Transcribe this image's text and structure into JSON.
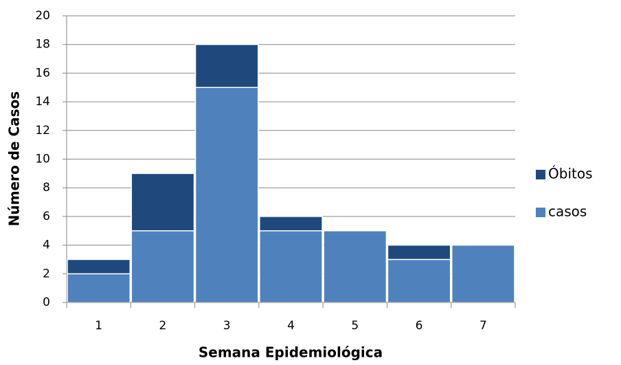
{
  "chart_data": {
    "type": "stacked_bar",
    "x_label": "Semana Epidemiológica",
    "y_label": "Número de Casos",
    "categories": [
      "1",
      "2",
      "3",
      "4",
      "5",
      "6",
      "7"
    ],
    "series": [
      {
        "name": "casos",
        "color": "#4f81bd",
        "values": [
          2,
          5,
          15,
          5,
          5,
          3,
          4
        ]
      },
      {
        "name": "Óbitos",
        "color": "#1f497d",
        "values": [
          1,
          4,
          3,
          1,
          0,
          1,
          0
        ]
      }
    ],
    "ylim": [
      0,
      20
    ],
    "yticks": [
      0,
      2,
      4,
      6,
      8,
      10,
      12,
      14,
      16,
      18,
      20
    ],
    "grid": true,
    "legend": "right"
  }
}
